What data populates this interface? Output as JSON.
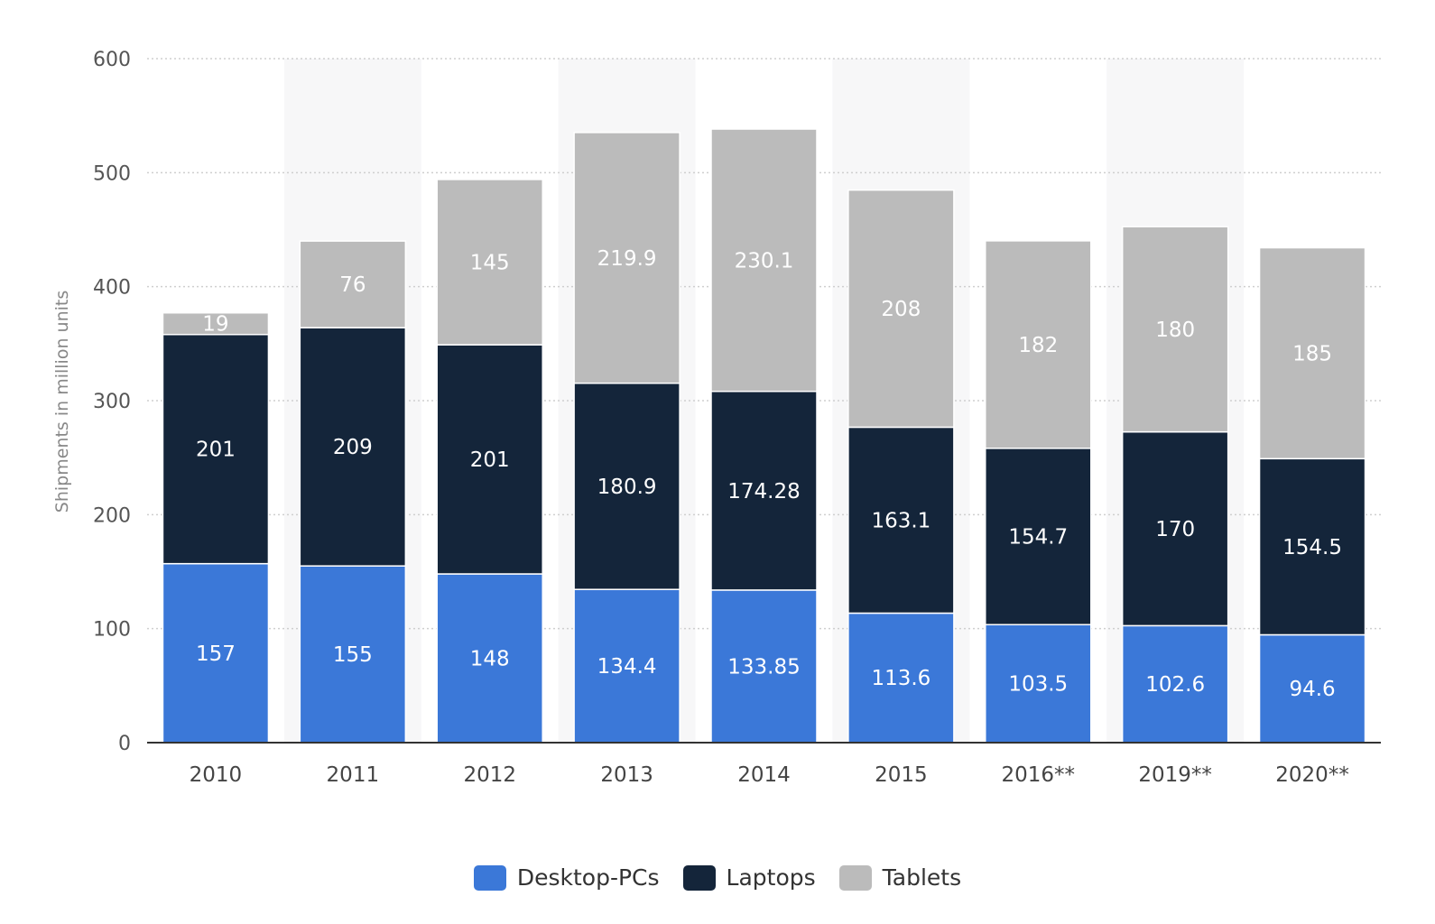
{
  "chart_data": {
    "type": "bar",
    "stacked": true,
    "categories": [
      "2010",
      "2011",
      "2012",
      "2013",
      "2014",
      "2015",
      "2016**",
      "2019**",
      "2020**"
    ],
    "series": [
      {
        "name": "Desktop-PCs",
        "color": "#3b78d8",
        "values": [
          157,
          155,
          148,
          134.4,
          133.85,
          113.6,
          103.5,
          102.6,
          94.6
        ]
      },
      {
        "name": "Laptops",
        "color": "#14253a",
        "values": [
          201,
          209,
          201,
          180.9,
          174.28,
          163.1,
          154.7,
          170,
          154.5
        ]
      },
      {
        "name": "Tablets",
        "color": "#bbbbbb",
        "values": [
          19,
          76,
          145,
          219.9,
          230.1,
          208,
          182,
          180,
          185
        ]
      }
    ],
    "labels": [
      [
        "157",
        "155",
        "148",
        "134.4",
        "133.85",
        "113.6",
        "103.5",
        "102.6",
        "94.6"
      ],
      [
        "201",
        "209",
        "201",
        "180.9",
        "174.28",
        "163.1",
        "154.7",
        "170",
        "154.5"
      ],
      [
        "19",
        "76",
        "145",
        "219.9",
        "230.1",
        "208",
        "182",
        "180",
        "185"
      ]
    ],
    "ylabel": "Shipments in million units",
    "ylim": [
      0,
      600
    ],
    "yticks": [
      "0",
      "100",
      "200",
      "300",
      "400",
      "500",
      "600"
    ],
    "grid": true,
    "legend_position": "bottom"
  }
}
